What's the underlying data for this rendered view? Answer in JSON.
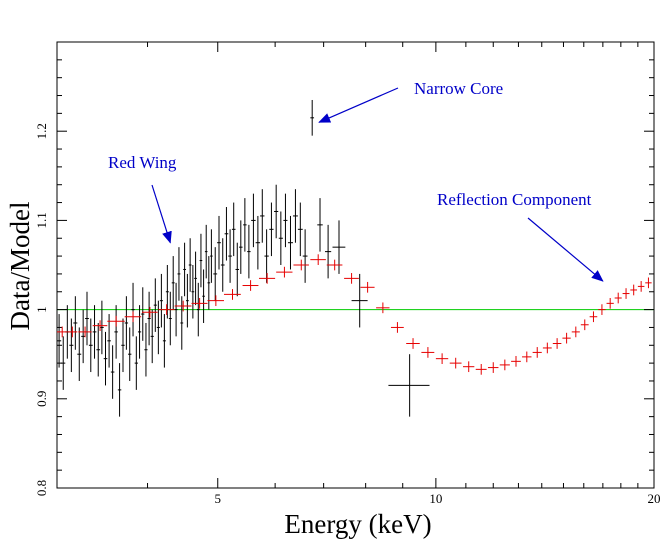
{
  "chart_data": {
    "type": "scatter",
    "xlabel": "Energy  (keV)",
    "ylabel": "Data/Model",
    "x_scale": "log",
    "xlim": [
      3,
      20
    ],
    "ylim": [
      0.8,
      1.3
    ],
    "x_ticks": [
      5,
      10,
      20
    ],
    "y_ticks": [
      0.8,
      0.9,
      1,
      1.1,
      1.2
    ],
    "x_tick_labels": [
      "5",
      "10",
      "20"
    ],
    "y_tick_labels": [
      "0.8",
      "0.9",
      "1",
      "1.1",
      "1.2"
    ],
    "reference_line": {
      "y": 1.0,
      "color": "#00cc00"
    },
    "grid": false,
    "annotations": [
      {
        "text": "Narrow Core",
        "arrow_to": [
          6.9,
          1.21
        ]
      },
      {
        "text": "Red Wing",
        "arrow_to": [
          4.3,
          1.075
        ]
      },
      {
        "text": "Reflection Component",
        "arrow_to": [
          17.0,
          1.032
        ]
      }
    ],
    "series": [
      {
        "color": "#000000",
        "points": [
          [
            3.02,
            0.965,
            0.02,
            0.03
          ],
          [
            3.06,
            0.94,
            0.02,
            0.03
          ],
          [
            3.1,
            0.975,
            0.02,
            0.03
          ],
          [
            3.14,
            0.96,
            0.02,
            0.03
          ],
          [
            3.18,
            0.985,
            0.02,
            0.03
          ],
          [
            3.22,
            0.95,
            0.02,
            0.03
          ],
          [
            3.26,
            0.97,
            0.02,
            0.03
          ],
          [
            3.3,
            0.99,
            0.02,
            0.03
          ],
          [
            3.34,
            0.96,
            0.02,
            0.03
          ],
          [
            3.38,
            0.975,
            0.02,
            0.03
          ],
          [
            3.42,
            0.955,
            0.02,
            0.03
          ],
          [
            3.46,
            0.98,
            0.02,
            0.03
          ],
          [
            3.5,
            0.945,
            0.02,
            0.03
          ],
          [
            3.54,
            0.965,
            0.02,
            0.03
          ],
          [
            3.58,
            0.93,
            0.02,
            0.03
          ],
          [
            3.62,
            0.975,
            0.02,
            0.03
          ],
          [
            3.66,
            0.91,
            0.02,
            0.03
          ],
          [
            3.7,
            0.96,
            0.02,
            0.03
          ],
          [
            3.74,
            0.985,
            0.02,
            0.03
          ],
          [
            3.78,
            0.95,
            0.02,
            0.03
          ],
          [
            3.82,
            1.0,
            0.02,
            0.03
          ],
          [
            3.86,
            0.94,
            0.02,
            0.03
          ],
          [
            3.9,
            0.975,
            0.02,
            0.03
          ],
          [
            3.94,
            0.995,
            0.02,
            0.03
          ],
          [
            3.98,
            0.955,
            0.02,
            0.03
          ],
          [
            4.02,
            0.99,
            0.02,
            0.03
          ],
          [
            4.06,
            0.97,
            0.02,
            0.03
          ],
          [
            4.1,
            1.005,
            0.02,
            0.03
          ],
          [
            4.14,
            0.98,
            0.02,
            0.03
          ],
          [
            4.18,
            1.01,
            0.02,
            0.03
          ],
          [
            4.22,
            0.965,
            0.02,
            0.03
          ],
          [
            4.26,
            1.02,
            0.02,
            0.03
          ],
          [
            4.3,
            0.99,
            0.02,
            0.03
          ],
          [
            4.34,
            1.03,
            0.02,
            0.03
          ],
          [
            4.38,
            1.0,
            0.02,
            0.03
          ],
          [
            4.42,
            1.04,
            0.02,
            0.03
          ],
          [
            4.46,
            0.985,
            0.02,
            0.03
          ],
          [
            4.5,
            1.045,
            0.02,
            0.03
          ],
          [
            4.54,
            1.01,
            0.02,
            0.03
          ],
          [
            4.58,
            1.05,
            0.02,
            0.03
          ],
          [
            4.62,
            1.02,
            0.02,
            0.03
          ],
          [
            4.66,
            1.035,
            0.02,
            0.03
          ],
          [
            4.7,
            1.0,
            0.02,
            0.03
          ],
          [
            4.74,
            1.055,
            0.02,
            0.03
          ],
          [
            4.78,
            1.015,
            0.02,
            0.03
          ],
          [
            4.82,
            1.065,
            0.02,
            0.03
          ],
          [
            4.86,
            1.03,
            0.02,
            0.03
          ],
          [
            4.9,
            1.06,
            0.02,
            0.03
          ],
          [
            4.96,
            1.04,
            0.03,
            0.03
          ],
          [
            5.02,
            1.075,
            0.03,
            0.03
          ],
          [
            5.08,
            1.05,
            0.03,
            0.03
          ],
          [
            5.14,
            1.085,
            0.03,
            0.03
          ],
          [
            5.2,
            1.06,
            0.03,
            0.03
          ],
          [
            5.26,
            1.09,
            0.03,
            0.03
          ],
          [
            5.32,
            1.045,
            0.03,
            0.03
          ],
          [
            5.38,
            1.07,
            0.03,
            0.03
          ],
          [
            5.45,
            1.095,
            0.03,
            0.03
          ],
          [
            5.52,
            1.065,
            0.03,
            0.03
          ],
          [
            5.6,
            1.1,
            0.04,
            0.03
          ],
          [
            5.68,
            1.075,
            0.04,
            0.03
          ],
          [
            5.76,
            1.105,
            0.04,
            0.03
          ],
          [
            5.84,
            1.06,
            0.04,
            0.03
          ],
          [
            5.93,
            1.09,
            0.04,
            0.03
          ],
          [
            6.02,
            1.11,
            0.04,
            0.03
          ],
          [
            6.11,
            1.08,
            0.04,
            0.03
          ],
          [
            6.2,
            1.1,
            0.04,
            0.03
          ],
          [
            6.3,
            1.075,
            0.05,
            0.03
          ],
          [
            6.4,
            1.105,
            0.05,
            0.03
          ],
          [
            6.5,
            1.09,
            0.05,
            0.03
          ],
          [
            6.6,
            1.06,
            0.05,
            0.03
          ],
          [
            6.75,
            1.215,
            0.04,
            0.02
          ],
          [
            6.92,
            1.095,
            0.06,
            0.03
          ],
          [
            7.1,
            1.065,
            0.07,
            0.03
          ],
          [
            7.35,
            1.07,
            0.15,
            0.03
          ],
          [
            7.85,
            1.01,
            0.2,
            0.03
          ],
          [
            9.2,
            0.915,
            0.6,
            0.035
          ]
        ]
      },
      {
        "color": "#e60000",
        "points": [
          [
            3.05,
            0.975,
            0.05,
            0.006
          ],
          [
            3.15,
            0.975,
            0.05,
            0.006
          ],
          [
            3.28,
            0.975,
            0.07,
            0.006
          ],
          [
            3.44,
            0.982,
            0.08,
            0.006
          ],
          [
            3.62,
            0.987,
            0.1,
            0.006
          ],
          [
            3.82,
            0.992,
            0.1,
            0.006
          ],
          [
            4.03,
            0.997,
            0.1,
            0.006
          ],
          [
            4.25,
            1.0,
            0.11,
            0.006
          ],
          [
            4.48,
            1.004,
            0.12,
            0.006
          ],
          [
            4.72,
            1.007,
            0.12,
            0.006
          ],
          [
            4.97,
            1.01,
            0.13,
            0.006
          ],
          [
            5.24,
            1.017,
            0.14,
            0.006
          ],
          [
            5.55,
            1.027,
            0.14,
            0.006
          ],
          [
            5.85,
            1.035,
            0.15,
            0.006
          ],
          [
            6.18,
            1.042,
            0.16,
            0.006
          ],
          [
            6.52,
            1.05,
            0.16,
            0.006
          ],
          [
            6.88,
            1.056,
            0.17,
            0.006
          ],
          [
            7.25,
            1.05,
            0.18,
            0.006
          ],
          [
            7.65,
            1.035,
            0.18,
            0.006
          ],
          [
            8.05,
            1.025,
            0.18,
            0.006
          ],
          [
            8.45,
            1.002,
            0.18,
            0.006
          ],
          [
            8.85,
            0.98,
            0.18,
            0.006
          ],
          [
            9.3,
            0.962,
            0.2,
            0.006
          ],
          [
            9.75,
            0.952,
            0.2,
            0.006
          ],
          [
            10.2,
            0.945,
            0.2,
            0.006
          ],
          [
            10.65,
            0.94,
            0.2,
            0.006
          ],
          [
            11.1,
            0.936,
            0.2,
            0.006
          ],
          [
            11.55,
            0.933,
            0.2,
            0.006
          ],
          [
            12.0,
            0.935,
            0.2,
            0.006
          ],
          [
            12.45,
            0.938,
            0.2,
            0.006
          ],
          [
            12.9,
            0.942,
            0.2,
            0.006
          ],
          [
            13.35,
            0.947,
            0.2,
            0.006
          ],
          [
            13.8,
            0.952,
            0.2,
            0.006
          ],
          [
            14.25,
            0.957,
            0.2,
            0.006
          ],
          [
            14.7,
            0.962,
            0.2,
            0.006
          ],
          [
            15.15,
            0.968,
            0.2,
            0.006
          ],
          [
            15.6,
            0.975,
            0.2,
            0.006
          ],
          [
            16.05,
            0.983,
            0.2,
            0.006
          ],
          [
            16.5,
            0.992,
            0.2,
            0.006
          ],
          [
            16.95,
            1.0,
            0.2,
            0.006
          ],
          [
            17.4,
            1.007,
            0.2,
            0.006
          ],
          [
            17.85,
            1.013,
            0.2,
            0.006
          ],
          [
            18.3,
            1.018,
            0.2,
            0.006
          ],
          [
            18.75,
            1.022,
            0.2,
            0.006
          ],
          [
            19.2,
            1.026,
            0.2,
            0.006
          ],
          [
            19.65,
            1.03,
            0.2,
            0.006
          ]
        ]
      }
    ]
  }
}
